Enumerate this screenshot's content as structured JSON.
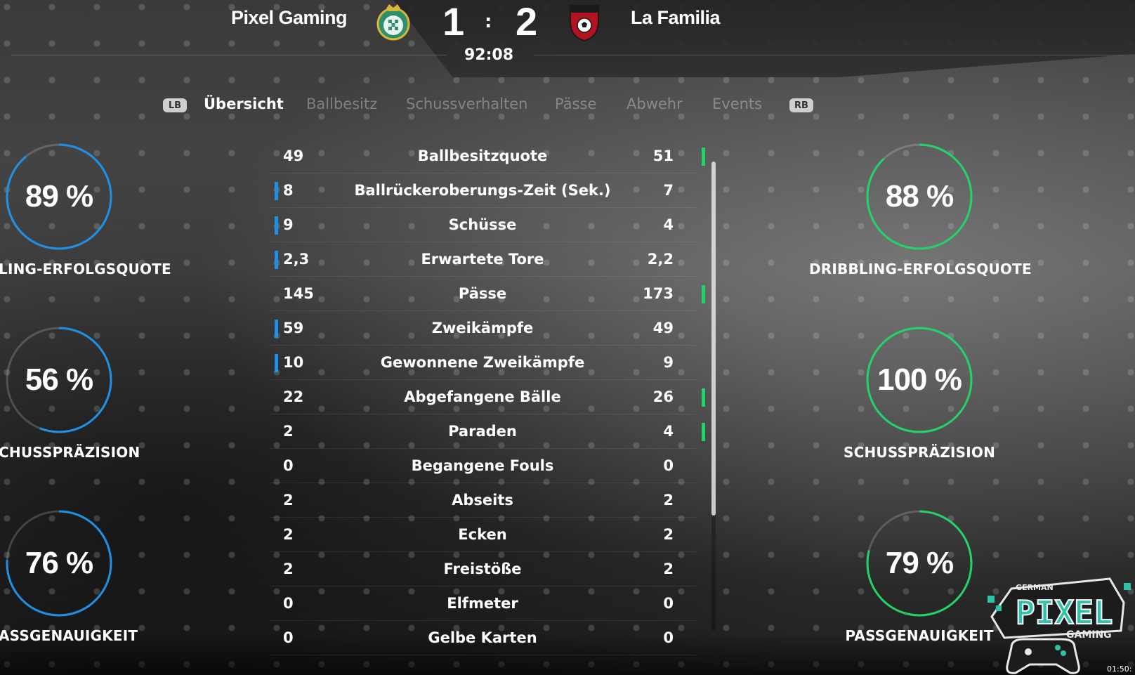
{
  "scoreboard": {
    "home_team": "Pixel Gaming",
    "away_team": "La Familia",
    "home_score": "1",
    "separator": ":",
    "away_score": "2",
    "clock": "92:08"
  },
  "tabs": {
    "lb_badge": "LB",
    "rb_badge": "RB",
    "items": [
      {
        "label": "Übersicht",
        "active": true
      },
      {
        "label": "Ballbesitz",
        "active": false
      },
      {
        "label": "Schussverhalten",
        "active": false
      },
      {
        "label": "Pässe",
        "active": false
      },
      {
        "label": "Abwehr",
        "active": false
      },
      {
        "label": "Events",
        "active": false
      }
    ]
  },
  "gauges": {
    "home": [
      {
        "value": "89 %",
        "fraction": 0.89,
        "label": "LING-ERFOLGSQUOTE"
      },
      {
        "value": "56 %",
        "fraction": 0.56,
        "label": "CHUSSPRÄZISION"
      },
      {
        "value": "76 %",
        "fraction": 0.76,
        "label": "ASSGENAUIGKEIT"
      }
    ],
    "away": [
      {
        "value": "88 %",
        "fraction": 0.88,
        "label": "DRIBBLING-ERFOLGSQUOTE"
      },
      {
        "value": "100 %",
        "fraction": 1.0,
        "label": "SCHUSSPRÄZISION"
      },
      {
        "value": "79 %",
        "fraction": 0.79,
        "label": "PASSGENAUIGKEIT"
      }
    ],
    "home_color": "#1e90e6",
    "away_color": "#22d36a"
  },
  "stats": [
    {
      "home": "49",
      "label": "Ballbesitzquote",
      "away": "51",
      "lead": "away"
    },
    {
      "home": "8",
      "label": "Ballrückeroberungs-Zeit (Sek.)",
      "away": "7",
      "lead": "home"
    },
    {
      "home": "9",
      "label": "Schüsse",
      "away": "4",
      "lead": "home"
    },
    {
      "home": "2,3",
      "label": "Erwartete Tore",
      "away": "2,2",
      "lead": "home"
    },
    {
      "home": "145",
      "label": "Pässe",
      "away": "173",
      "lead": "away"
    },
    {
      "home": "59",
      "label": "Zweikämpfe",
      "away": "49",
      "lead": "home"
    },
    {
      "home": "10",
      "label": "Gewonnene Zweikämpfe",
      "away": "9",
      "lead": "home"
    },
    {
      "home": "22",
      "label": "Abgefangene Bälle",
      "away": "26",
      "lead": "away"
    },
    {
      "home": "2",
      "label": "Paraden",
      "away": "4",
      "lead": "away"
    },
    {
      "home": "0",
      "label": "Begangene Fouls",
      "away": "0",
      "lead": "none"
    },
    {
      "home": "2",
      "label": "Abseits",
      "away": "2",
      "lead": "none"
    },
    {
      "home": "2",
      "label": "Ecken",
      "away": "2",
      "lead": "none"
    },
    {
      "home": "2",
      "label": "Freistöße",
      "away": "2",
      "lead": "none"
    },
    {
      "home": "0",
      "label": "Elfmeter",
      "away": "0",
      "lead": "none"
    },
    {
      "home": "0",
      "label": "Gelbe Karten",
      "away": "0",
      "lead": "none"
    }
  ],
  "overlay": {
    "logo_text_top": "GERMAN",
    "logo_text_main": "PIXEL",
    "logo_text_bottom": "GAMING",
    "timestamp": "01:50:"
  }
}
